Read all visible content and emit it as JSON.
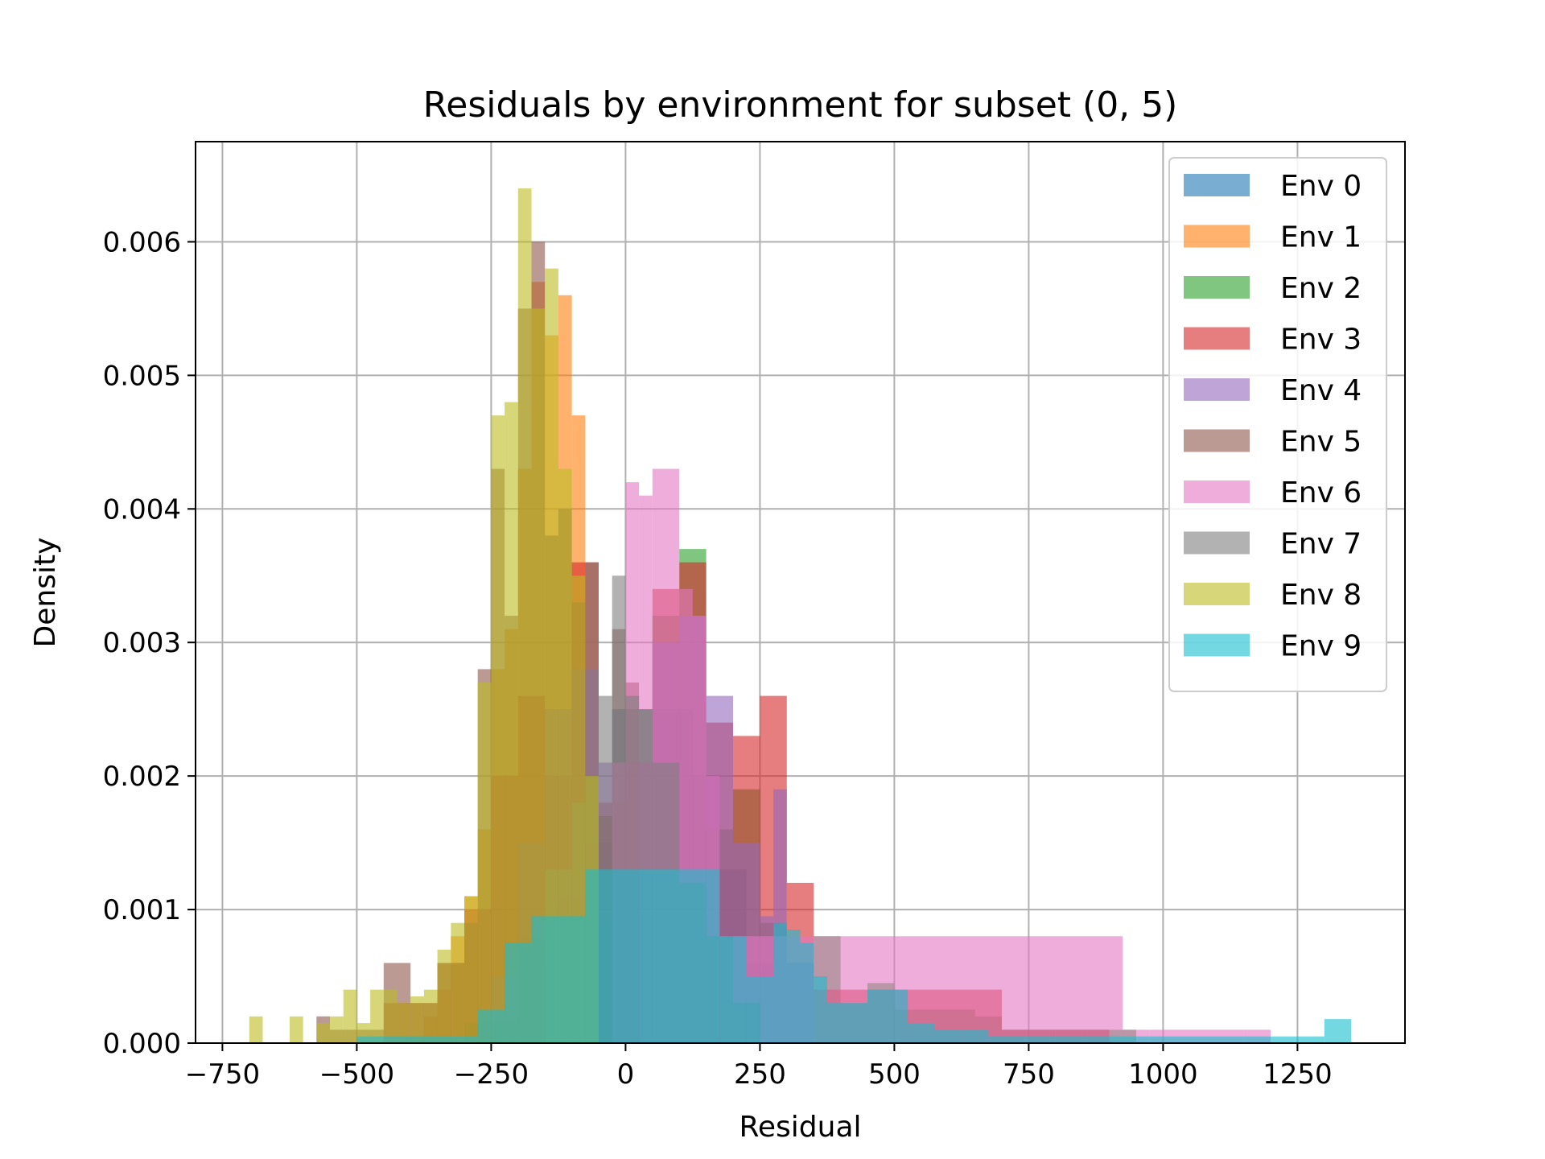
{
  "chart_data": {
    "type": "histogram",
    "title": "Residuals by environment for subset (0, 5)",
    "xlabel": "Residual",
    "ylabel": "Density",
    "xlim": [
      -800,
      1450
    ],
    "ylim": [
      0,
      0.00675
    ],
    "xticks": [
      -750,
      -500,
      -250,
      0,
      250,
      500,
      750,
      1000,
      1250
    ],
    "xtick_labels": [
      "−750",
      "−500",
      "−250",
      "0",
      "250",
      "500",
      "750",
      "1000",
      "1250"
    ],
    "yticks": [
      0,
      0.001,
      0.002,
      0.003,
      0.004,
      0.005,
      0.006
    ],
    "ytick_labels": [
      "0.000",
      "0.001",
      "0.002",
      "0.003",
      "0.004",
      "0.005",
      "0.006"
    ],
    "grid": true,
    "legend_position": "top-right",
    "bar_alpha": 0.6,
    "series": [
      {
        "name": "Env 0",
        "color": "#1f77b4",
        "bin_edges": [
          -275,
          -225,
          -175,
          -125,
          -75,
          -25,
          25,
          75,
          125,
          175,
          225,
          275,
          325
        ],
        "densities": [
          5e-05,
          0.0002,
          0.0006,
          0.0011,
          0.0015,
          0.0025,
          0.0025,
          0.0025,
          0.002,
          0.0013,
          0.0006,
          0.0003
        ]
      },
      {
        "name": "Env 1",
        "color": "#ff7f0e",
        "bin_edges": [
          -400,
          -375,
          -350,
          -325,
          -300,
          -275,
          -250,
          -225,
          -200,
          -175,
          -150,
          -125,
          -100,
          -75,
          -50
        ],
        "densities": [
          5e-05,
          0.0002,
          0.0004,
          0.0008,
          0.0011,
          0.0016,
          0.0028,
          0.0031,
          0.0043,
          0.0057,
          0.0053,
          0.0056,
          0.0047,
          0.0036
        ]
      },
      {
        "name": "Env 2",
        "color": "#2ca02c",
        "bin_edges": [
          -300,
          -200,
          -100,
          0,
          50,
          100,
          150,
          200,
          250,
          300,
          350,
          400,
          450,
          500,
          650,
          700,
          800,
          850,
          900,
          950
        ],
        "densities": [
          0.00015,
          0.0008,
          0.0009,
          0.0025,
          0.0032,
          0.0037,
          0.0016,
          0.0019,
          0.0009,
          0.0006,
          0.0008,
          0.0003,
          0.00045,
          0.00025,
          0.0002,
          0.0001,
          0.0001,
          0.0001,
          0.0001
        ]
      },
      {
        "name": "Env 3",
        "color": "#d62728",
        "bin_edges": [
          -450,
          -400,
          -350,
          -300,
          -250,
          -200,
          -150,
          -100,
          -50,
          0,
          50,
          100,
          150,
          200,
          250,
          300,
          350,
          700,
          750,
          800,
          850,
          900
        ],
        "densities": [
          0.0003,
          0.0003,
          0.0006,
          0.001,
          0.002,
          0.0026,
          0.002,
          0.0036,
          0.0018,
          0.0021,
          0.0034,
          0.0036,
          0.0024,
          0.0023,
          0.0026,
          0.0012,
          0.0004,
          0.0001,
          0.0001,
          0.0001,
          0.0001
        ]
      },
      {
        "name": "Env 4",
        "color": "#9467bd",
        "bin_edges": [
          -250,
          -200,
          -150,
          -100,
          -50,
          0,
          50,
          100,
          150,
          200,
          250,
          275,
          300,
          350
        ],
        "densities": [
          0.0005,
          0.0015,
          0.0025,
          0.0028,
          0.0021,
          0.0021,
          0.003,
          0.0032,
          0.0026,
          0.0015,
          0.00095,
          0.0019,
          0.0006
        ]
      },
      {
        "name": "Env 5",
        "color": "#8c564b",
        "bin_edges": [
          -575,
          -550,
          -450,
          -400,
          -350,
          -300,
          -275,
          -250,
          -225,
          -200,
          -175,
          -150,
          -125,
          -100,
          -75,
          -50,
          -25,
          0,
          25
        ],
        "densities": [
          0.0002,
          0.0001,
          0.0006,
          0.0003,
          0.0006,
          0.0009,
          0.0028,
          0.0043,
          0.0032,
          0.0055,
          0.006,
          0.0038,
          0.004,
          0.0033,
          0.002,
          0.0017,
          0.0031,
          0.0027
        ]
      },
      {
        "name": "Env 6",
        "color": "#e377c2",
        "bin_edges": [
          -25,
          0,
          25,
          50,
          75,
          100,
          125,
          150,
          175,
          925,
          975,
          1150,
          1200
        ],
        "densities": [
          0.0021,
          0.0042,
          0.0041,
          0.0043,
          0.0043,
          0.0034,
          0.0032,
          0.002,
          0.0008,
          0.0001,
          0.0001,
          0.0001
        ]
      },
      {
        "name": "Env 7",
        "color": "#7f7f7f",
        "bin_edges": [
          -150,
          -100,
          -75,
          -50,
          -25,
          0,
          25,
          50,
          100,
          150,
          200,
          250
        ],
        "densities": [
          0.0013,
          0.0018,
          0.0036,
          0.0026,
          0.0035,
          0.0026,
          0.0025,
          0.0021,
          0.0012,
          0.0008,
          0.0003
        ]
      },
      {
        "name": "Env 8",
        "color": "#bcbd22",
        "bin_edges": [
          -700,
          -675,
          -625,
          -600,
          -575,
          -550,
          -525,
          -500,
          -475,
          -450,
          -425,
          -400,
          -375,
          -350,
          -325,
          -300,
          -275,
          -250,
          -225,
          -200,
          -175,
          -150,
          -125,
          -100,
          -75,
          -50
        ],
        "densities": [
          0.0002,
          0.0,
          0.0002,
          0.0,
          0.00015,
          0.0002,
          0.0004,
          0.00015,
          0.0004,
          0.0004,
          0.0003,
          0.00035,
          0.0004,
          0.0007,
          0.0009,
          0.0011,
          0.0027,
          0.0047,
          0.0048,
          0.0064,
          0.0055,
          0.0058,
          0.0043,
          0.0035,
          0.002
        ]
      },
      {
        "name": "Env 9",
        "color": "#17becf",
        "bin_edges": [
          -500,
          -375,
          -275,
          -225,
          -175,
          -75,
          25,
          175,
          225,
          275,
          300,
          325,
          350,
          375,
          450,
          500,
          525,
          575,
          625,
          675,
          775,
          1300,
          1350
        ],
        "densities": [
          5e-05,
          5e-05,
          0.00025,
          0.00075,
          0.00095,
          0.0013,
          0.0013,
          0.0008,
          0.0005,
          0.0009,
          0.00085,
          0.00075,
          0.0005,
          0.0003,
          0.0004,
          0.0004,
          0.00015,
          0.0001,
          0.0001,
          5e-05,
          5e-05,
          0.00018
        ]
      }
    ]
  }
}
